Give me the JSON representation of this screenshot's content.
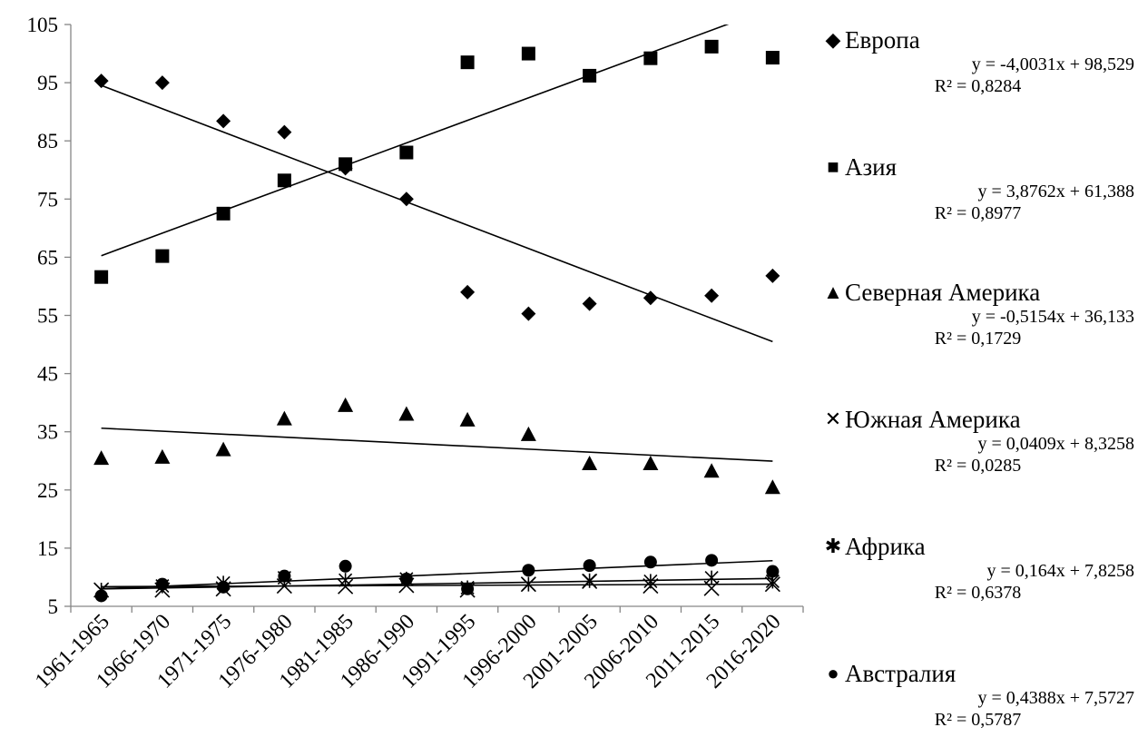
{
  "chart_data": {
    "type": "scatter",
    "categories": [
      "1961-1965",
      "1966-1970",
      "1971-1975",
      "1976-1980",
      "1981-1985",
      "1986-1990",
      "1991-1995",
      "1996-2000",
      "2001-2005",
      "2006-2010",
      "2011-2015",
      "2016-2020"
    ],
    "ylim": [
      5,
      105
    ],
    "yticks": [
      5,
      15,
      25,
      35,
      45,
      55,
      65,
      75,
      85,
      95,
      105
    ],
    "grid": false,
    "legend_position": "right",
    "series": [
      {
        "name": "Европа",
        "marker": "diamond",
        "values": [
          95.3,
          95.0,
          88.4,
          86.5,
          80.3,
          75.0,
          59.0,
          55.3,
          57.0,
          58.0,
          58.4,
          61.8
        ],
        "trend": {
          "slope": -4.0031,
          "intercept": 98.529
        },
        "equation": "y = -4,0031x + 98,529",
        "r2": "R² = 0,8284"
      },
      {
        "name": "Азия",
        "marker": "square",
        "values": [
          61.6,
          65.2,
          72.5,
          78.2,
          81.0,
          83.0,
          98.5,
          100.0,
          96.2,
          99.2,
          101.2,
          99.3
        ],
        "trend": {
          "slope": 3.8762,
          "intercept": 61.388
        },
        "equation": "y = 3,8762x + 61,388",
        "r2": "R² = 0,8977"
      },
      {
        "name": "Северная Америка",
        "marker": "triangle",
        "values": [
          30.4,
          30.6,
          31.9,
          37.2,
          39.5,
          38.0,
          37.0,
          34.5,
          29.5,
          29.5,
          28.2,
          25.4
        ],
        "trend": {
          "slope": -0.5154,
          "intercept": 36.133
        },
        "equation": "y = -0,5154x + 36,133",
        "r2": "R² = 0,1729"
      },
      {
        "name": "Южная Америка",
        "marker": "x",
        "values": [
          7.8,
          7.8,
          8.0,
          8.5,
          8.4,
          8.6,
          7.8,
          8.8,
          9.3,
          8.5,
          8.1,
          8.8
        ],
        "trend": {
          "slope": 0.0409,
          "intercept": 8.3258
        },
        "equation": "y = 0,0409x + 8,3258",
        "r2": "R² = 0,0285"
      },
      {
        "name": "Африка",
        "marker": "asterisk",
        "values": [
          7.8,
          8.5,
          9.0,
          9.9,
          9.5,
          9.7,
          8.2,
          8.8,
          9.4,
          9.3,
          9.9,
          9.3
        ],
        "trend": {
          "slope": 0.164,
          "intercept": 7.8258
        },
        "equation": "y = 0,164x + 7,8258",
        "r2": "R² = 0,6378"
      },
      {
        "name": "Австралия",
        "marker": "circle",
        "values": [
          6.8,
          8.8,
          8.3,
          10.2,
          11.9,
          9.7,
          8.0,
          11.2,
          12.0,
          12.6,
          12.9,
          11.0
        ],
        "trend": {
          "slope": 0.4388,
          "intercept": 7.5727
        },
        "equation": "y = 0,4388x + 7,5727",
        "r2": "R² = 0,5787"
      }
    ]
  }
}
